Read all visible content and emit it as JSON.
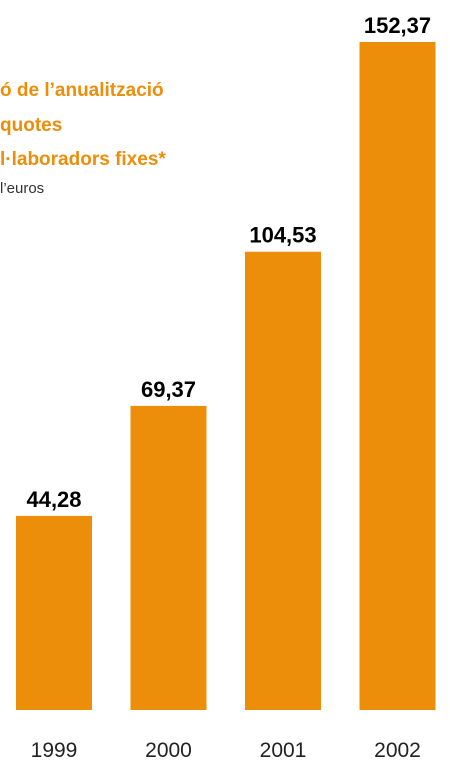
{
  "chart_data": {
    "type": "bar",
    "title_lines": [
      "ó de l’anualització",
      "quotes",
      "l·laboradors fixes*"
    ],
    "unit_text": "l’euros",
    "categories": [
      "1999",
      "2000",
      "2001",
      "2002"
    ],
    "values": [
      44.28,
      69.37,
      104.53,
      152.37
    ],
    "value_labels": [
      "44,28",
      "69,37",
      "104,53",
      "152,37"
    ],
    "xlabel": "",
    "ylabel": "",
    "ylim": [
      0,
      152.37
    ],
    "grid": false,
    "legend": "none"
  },
  "colors": {
    "bar": "#ED8E0A",
    "title": "#ED8E0A",
    "label": "#000000",
    "axis_text": "#222222"
  }
}
